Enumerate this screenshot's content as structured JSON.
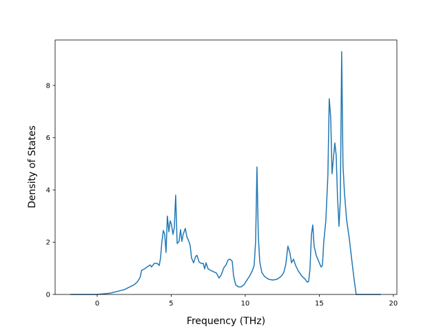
{
  "chart_data": {
    "type": "line",
    "x_label": "Frequency (THz)",
    "y_label": "Density of States",
    "xlim": [
      -2.84,
      20.24
    ],
    "ylim": [
      0,
      9.74
    ],
    "xticks": [
      0,
      5,
      10,
      15,
      20
    ],
    "yticks": [
      0,
      2,
      4,
      6,
      8
    ],
    "series": [
      {
        "color": "#1f77b4",
        "x": [
          -1.81,
          0,
          0.88,
          1.81,
          2.5,
          2.74,
          2.9,
          3.0,
          3.2,
          3.44,
          3.58,
          3.67,
          3.86,
          4.05,
          4.19,
          4.28,
          4.37,
          4.47,
          4.56,
          4.65,
          4.74,
          4.84,
          4.93,
          5.02,
          5.12,
          5.21,
          5.3,
          5.4,
          5.53,
          5.63,
          5.72,
          5.81,
          5.95,
          6.05,
          6.19,
          6.28,
          6.37,
          6.51,
          6.65,
          6.74,
          6.88,
          7.02,
          7.16,
          7.26,
          7.35,
          7.49,
          7.67,
          7.86,
          8.05,
          8.23,
          8.37,
          8.56,
          8.7,
          8.84,
          8.98,
          9.12,
          9.21,
          9.35,
          9.53,
          9.72,
          9.91,
          10.09,
          10.28,
          10.47,
          10.6,
          10.7,
          10.79,
          10.88,
          10.98,
          11.12,
          11.3,
          11.58,
          11.86,
          12.14,
          12.42,
          12.6,
          12.74,
          12.88,
          13.02,
          13.12,
          13.26,
          13.4,
          13.58,
          13.81,
          14.05,
          14.19,
          14.28,
          14.37,
          14.47,
          14.56,
          14.65,
          14.79,
          14.98,
          15.12,
          15.21,
          15.3,
          15.44,
          15.58,
          15.67,
          15.77,
          15.86,
          15.95,
          16.05,
          16.14,
          16.23,
          16.33,
          16.42,
          16.51,
          16.6,
          16.7,
          16.84,
          17.02,
          17.21,
          17.35,
          17.49,
          19.16
        ],
        "values": [
          0,
          0,
          0.05,
          0.18,
          0.37,
          0.5,
          0.66,
          0.92,
          0.98,
          1.08,
          1.13,
          1.05,
          1.19,
          1.19,
          1.11,
          1.4,
          2.03,
          2.45,
          2.3,
          1.61,
          3.0,
          2.4,
          2.82,
          2.66,
          2.3,
          2.56,
          3.8,
          1.95,
          2.03,
          2.48,
          2.03,
          2.3,
          2.53,
          2.22,
          2.03,
          1.87,
          1.4,
          1.21,
          1.45,
          1.5,
          1.24,
          1.19,
          1.19,
          0.98,
          1.21,
          0.98,
          0.92,
          0.87,
          0.82,
          0.63,
          0.74,
          1.03,
          1.13,
          1.32,
          1.35,
          1.27,
          0.71,
          0.37,
          0.29,
          0.29,
          0.37,
          0.53,
          0.69,
          0.9,
          1.11,
          2.03,
          4.88,
          2.24,
          1.24,
          0.84,
          0.69,
          0.58,
          0.55,
          0.58,
          0.69,
          0.84,
          1.16,
          1.85,
          1.58,
          1.21,
          1.35,
          1.11,
          0.9,
          0.71,
          0.58,
          0.47,
          0.5,
          0.98,
          2.3,
          2.66,
          1.85,
          1.5,
          1.24,
          1.05,
          1.11,
          2.0,
          2.82,
          4.56,
          7.49,
          6.78,
          4.62,
          5.2,
          5.8,
          5.33,
          3.72,
          2.61,
          3.62,
          9.29,
          4.93,
          3.88,
          2.88,
          2.16,
          1.24,
          0.58,
          0,
          0
        ]
      }
    ]
  }
}
